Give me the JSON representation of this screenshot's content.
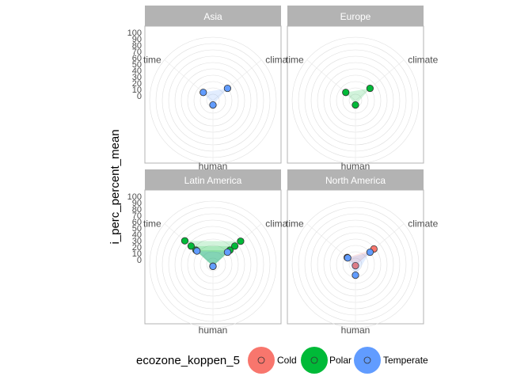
{
  "chart_data": {
    "type": "radar",
    "ylabel": "i_perc_percent_mean",
    "rlim": [
      0,
      100
    ],
    "r_ticks": [
      "0",
      "10",
      "20",
      "30",
      "40",
      "50",
      "60",
      "70",
      "80",
      "90",
      "100"
    ],
    "axes": [
      "time",
      "climate",
      "human"
    ],
    "grid": true,
    "legend": {
      "title": "ecozone_koppen_5",
      "position": "bottom",
      "entries": [
        {
          "name": "Cold",
          "color": "#f8766d"
        },
        {
          "name": "Polar",
          "color": "#00ba38"
        },
        {
          "name": "Temperate",
          "color": "#619cff"
        }
      ]
    },
    "facets": [
      {
        "title": "Asia",
        "series": [
          {
            "name": "Temperate",
            "values": [
              20,
              30,
              7
            ]
          }
        ]
      },
      {
        "title": "Europe",
        "series": [
          {
            "name": "Polar",
            "values": [
              20,
              30,
              7
            ]
          }
        ]
      },
      {
        "title": "Latin America",
        "series": [
          {
            "name": "Polar",
            "values": [
              58,
              57,
              3
            ]
          },
          {
            "name": "Polar",
            "values": [
              45,
              45,
              3
            ]
          },
          {
            "name": "Polar",
            "values": [
              35,
              35,
              3
            ]
          },
          {
            "name": "Temperate",
            "values": [
              33,
              30,
              3
            ]
          }
        ]
      },
      {
        "title": "North America",
        "series": [
          {
            "name": "Cold",
            "values": [
              17,
              38,
              2
            ]
          },
          {
            "name": "Temperate",
            "values": [
              16,
              30,
              17
            ]
          }
        ]
      }
    ]
  }
}
